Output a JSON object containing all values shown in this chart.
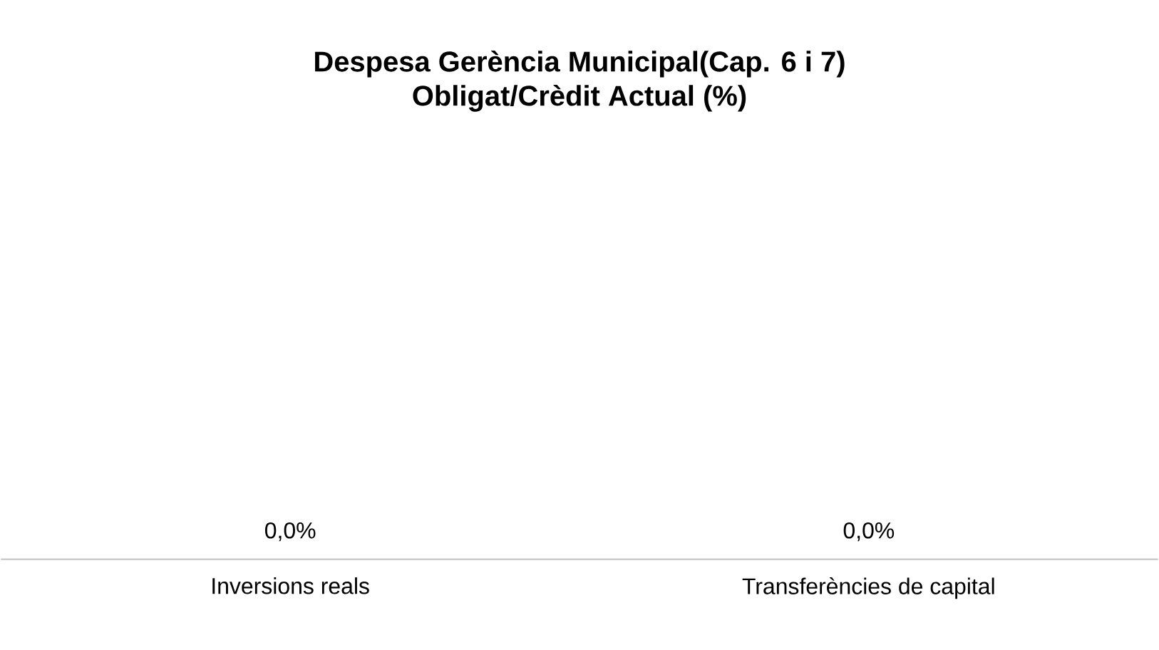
{
  "chart_data": {
    "type": "other",
    "title": "Despesa Gerència Municipal(Cap. 6 i 7)\nObligat/Crèdit Actual (%)",
    "categories": [
      "Inversions reals",
      "Transferències de capital"
    ],
    "values": [
      0,
      0
    ],
    "value_labels": [
      "0,0%",
      "0,0%"
    ]
  }
}
